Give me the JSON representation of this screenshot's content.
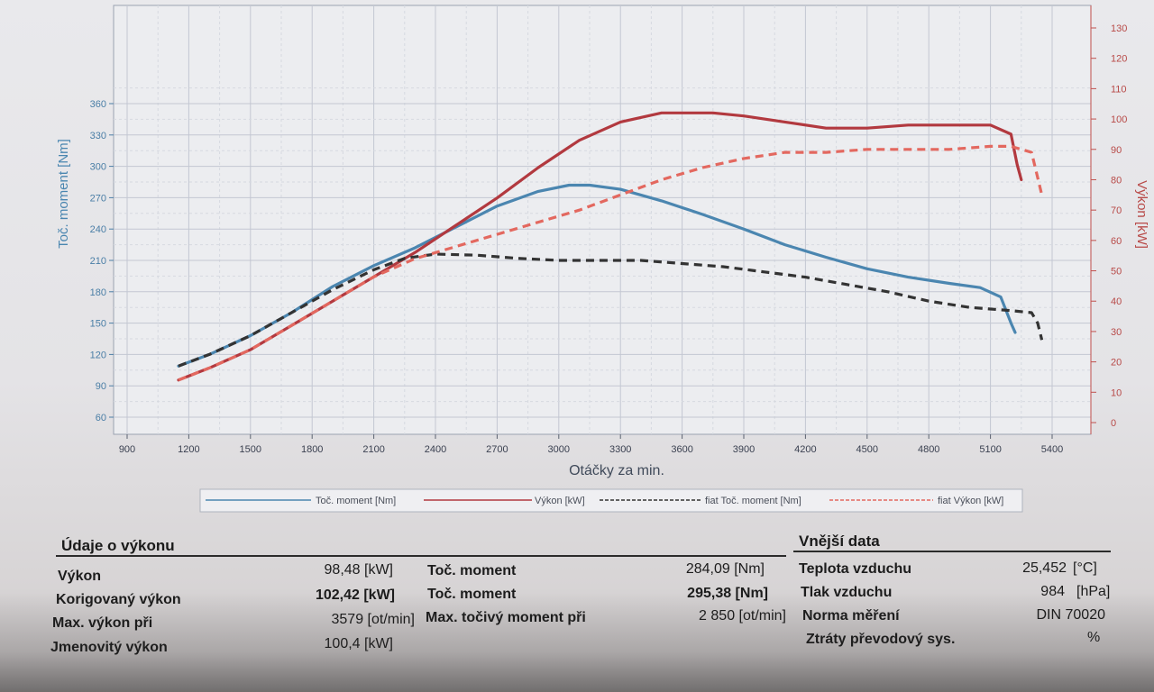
{
  "chart_data": {
    "type": "line",
    "xlabel": "Otáčky za min.",
    "ylabel": "Toč. moment [Nm]",
    "y2label": "Výkon [kW]",
    "xlim": [
      900,
      5400
    ],
    "ylim": [
      60,
      375
    ],
    "y2lim": [
      0,
      135
    ],
    "x_ticks": [
      "900",
      "1200",
      "1500",
      "1800",
      "2100",
      "2400",
      "2700",
      "3000",
      "3300",
      "3600",
      "3900",
      "4200",
      "4500",
      "4800",
      "5100",
      "5400"
    ],
    "y_ticks": [
      "60",
      "90",
      "120",
      "150",
      "180",
      "210",
      "240",
      "270",
      "300",
      "330",
      "360"
    ],
    "y2_ticks": [
      "0",
      "10",
      "20",
      "30",
      "40",
      "50",
      "60",
      "70",
      "80",
      "90",
      "100",
      "110",
      "120",
      "130"
    ],
    "grid": true,
    "legend_position": "bottom",
    "series": [
      {
        "name": "Toč. moment [Nm]",
        "axis": "left",
        "color": "#4b86b0",
        "dashed": false,
        "x": [
          1150,
          1300,
          1500,
          1700,
          1900,
          2100,
          2300,
          2500,
          2700,
          2900,
          3050,
          3150,
          3300,
          3500,
          3700,
          3900,
          4100,
          4300,
          4500,
          4700,
          4900,
          5050,
          5150,
          5200,
          5220
        ],
        "y": [
          109,
          120,
          138,
          160,
          185,
          205,
          222,
          242,
          262,
          276,
          282,
          282,
          278,
          267,
          254,
          240,
          225,
          213,
          202,
          194,
          188,
          184,
          175,
          150,
          141
        ]
      },
      {
        "name": "Výkon [kW]",
        "axis": "right",
        "color": "#b2393f",
        "dashed": false,
        "x": [
          1150,
          1300,
          1500,
          1700,
          1900,
          2100,
          2300,
          2500,
          2700,
          2900,
          3100,
          3300,
          3500,
          3600,
          3750,
          3900,
          4100,
          4300,
          4500,
          4700,
          4900,
          5100,
          5200,
          5230,
          5250
        ],
        "y": [
          14,
          18,
          24,
          32,
          40,
          48,
          56,
          65,
          74,
          84,
          93,
          99,
          102,
          102,
          102,
          101,
          99,
          97,
          97,
          98,
          98,
          98,
          95,
          85,
          80
        ]
      },
      {
        "name": "fiat Toč. moment [Nm]",
        "axis": "left",
        "color": "#333333",
        "dashed": true,
        "x": [
          1150,
          1300,
          1500,
          1700,
          1900,
          2100,
          2250,
          2400,
          2600,
          2800,
          3000,
          3200,
          3400,
          3600,
          3800,
          4000,
          4200,
          4400,
          4600,
          4800,
          5000,
          5200,
          5300,
          5330,
          5350
        ],
        "y": [
          109,
          120,
          138,
          160,
          182,
          201,
          212,
          216,
          215,
          212,
          210,
          210,
          210,
          207,
          204,
          199,
          194,
          187,
          180,
          171,
          165,
          162,
          160,
          150,
          134
        ]
      },
      {
        "name": "fiat Výkon [kW]",
        "axis": "right",
        "color": "#e3685f",
        "dashed": true,
        "x": [
          1150,
          1300,
          1500,
          1700,
          1900,
          2100,
          2300,
          2500,
          2700,
          2900,
          3100,
          3300,
          3500,
          3700,
          3900,
          4100,
          4300,
          4500,
          4700,
          4900,
          5100,
          5200,
          5300,
          5350
        ],
        "y": [
          14,
          18,
          24,
          32,
          40,
          48,
          54,
          58,
          62,
          66,
          70,
          75,
          80,
          84,
          87,
          89,
          89,
          90,
          90,
          90,
          91,
          91,
          89,
          75
        ]
      }
    ]
  },
  "legend": [
    {
      "label": "Toč. moment [Nm]",
      "color": "#4b86b0",
      "dashed": false
    },
    {
      "label": "Výkon [kW]",
      "color": "#b2393f",
      "dashed": false
    },
    {
      "label": "fiat Toč. moment [Nm]",
      "color": "#333333",
      "dashed": true
    },
    {
      "label": "fiat Výkon [kW]",
      "color": "#e3685f",
      "dashed": true
    }
  ],
  "performance": {
    "title": "Údaje o výkonu",
    "left_rows": [
      {
        "label": "Výkon",
        "value": "98,48 [kW]",
        "bold": false
      },
      {
        "label": "Korigovaný výkon",
        "value": "102,42 [kW]",
        "bold": true
      },
      {
        "label": "Max. výkon při",
        "value": "3579 [ot/min]",
        "bold": false
      },
      {
        "label": "Jmenovitý výkon",
        "value": "100,4 [kW]",
        "bold": false
      }
    ],
    "mid_rows": [
      {
        "label": "Toč. moment",
        "value": "284,09 [Nm]",
        "bold": false
      },
      {
        "label": "Toč. moment",
        "value": "295,38 [Nm]",
        "bold": true
      },
      {
        "label": "Max. točivý moment při",
        "value": "2 850 [ot/min]",
        "bold": false
      }
    ]
  },
  "external": {
    "title": "Vnější data",
    "rows": [
      {
        "label": "Teplota vzduchu",
        "value": "25,452",
        "unit": "[°C]"
      },
      {
        "label": "Tlak vzduchu",
        "value": "984",
        "unit": "[hPa]"
      },
      {
        "label": "Norma měření",
        "value": "DIN 70020",
        "unit": ""
      },
      {
        "label": "Ztráty převodový sys.",
        "value": "",
        "unit": "%"
      }
    ]
  }
}
